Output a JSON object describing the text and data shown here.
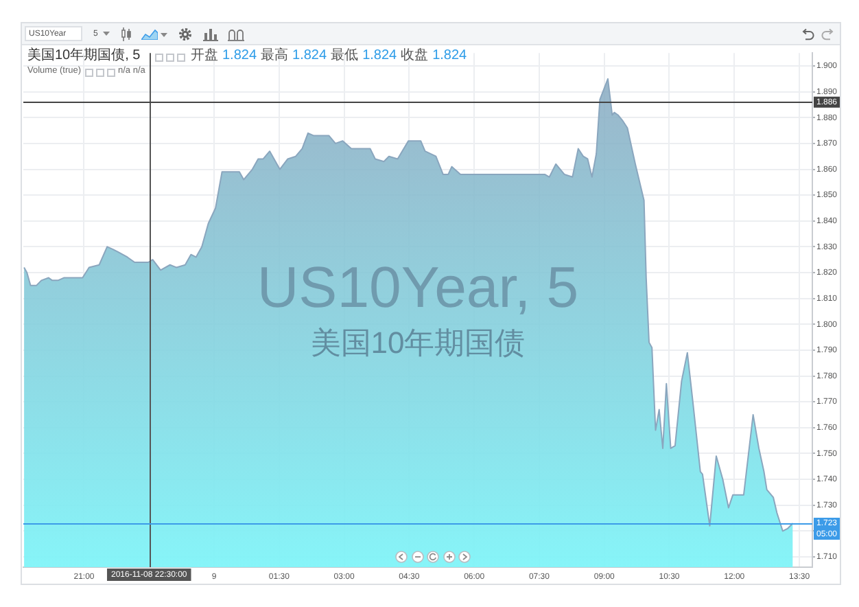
{
  "chart_data": {
    "type": "area",
    "title": "美国10年期国债, 5",
    "subtitle": "开盘 1.824 最高 1.824 最低 1.824 收盘 1.824",
    "annotations": [
      "US10Year",
      "5",
      "Volume (true)",
      "n/a n/a",
      "US10Year, 5",
      "美国10年期国债",
      {
        "text": "05:00",
        "y": 1.723
      }
    ],
    "color": "#8aa6be",
    "x": [
      "2016-11-08T19:37",
      "2016-11-08T19:41",
      "2016-11-08T19:46",
      "2016-11-08T19:54",
      "2016-11-08T20:01",
      "2016-11-08T20:11",
      "2016-11-08T20:16",
      "2016-11-08T20:24",
      "2016-11-08T20:32",
      "2016-11-08T20:58",
      "2016-11-08T21:07",
      "2016-11-08T21:21",
      "2016-11-08T21:32",
      "2016-11-08T21:40",
      "2016-11-08T21:47",
      "2016-11-08T22:00",
      "2016-11-08T22:10",
      "2016-11-08T22:29",
      "2016-11-08T22:35",
      "2016-11-08T22:46",
      "2016-11-08T22:59",
      "2016-11-08T23:08",
      "2016-11-08T23:20",
      "2016-11-08T23:28",
      "2016-11-08T23:35",
      "2016-11-08T23:43",
      "2016-11-08T23:52",
      "2016-11-09T00:02",
      "2016-11-09T00:11",
      "2016-11-09T00:23",
      "2016-11-09T00:35",
      "2016-11-09T00:41",
      "2016-11-09T00:53",
      "2016-11-09T01:01",
      "2016-11-09T01:08",
      "2016-11-09T01:17",
      "2016-11-09T01:23",
      "2016-11-09T01:31",
      "2016-11-09T01:42",
      "2016-11-09T01:53",
      "2016-11-09T02:02",
      "2016-11-09T02:10",
      "2016-11-09T02:18",
      "2016-11-09T02:25",
      "2016-11-09T02:39",
      "2016-11-09T02:48",
      "2016-11-09T02:58",
      "2016-11-09T03:10",
      "2016-11-09T03:25",
      "2016-11-09T03:36",
      "2016-11-09T03:43",
      "2016-11-09T03:55",
      "2016-11-09T04:02",
      "2016-11-09T04:14",
      "2016-11-09T04:29",
      "2016-11-09T04:46",
      "2016-11-09T04:52",
      "2016-11-09T05:07",
      "2016-11-09T05:17",
      "2016-11-09T05:24",
      "2016-11-09T05:29",
      "2016-11-09T05:41",
      "2016-11-09T06:04",
      "2016-11-09T06:10",
      "2016-11-09T07:38",
      "2016-11-09T07:44",
      "2016-11-09T07:53",
      "2016-11-09T08:05",
      "2016-11-09T08:16",
      "2016-11-09T08:24",
      "2016-11-09T08:31",
      "2016-11-09T08:37",
      "2016-11-09T08:43",
      "2016-11-09T08:49",
      "2016-11-09T08:54",
      "2016-11-09T09:05",
      "2016-11-09T09:11",
      "2016-11-09T09:14",
      "2016-11-09T09:19",
      "2016-11-09T09:25",
      "2016-11-09T09:32",
      "2016-11-09T09:43",
      "2016-11-09T09:55",
      "2016-11-09T09:58",
      "2016-11-09T10:02",
      "2016-11-09T10:06",
      "2016-11-09T10:11",
      "2016-11-09T10:16",
      "2016-11-09T10:21",
      "2016-11-09T10:26",
      "2016-11-09T10:32",
      "2016-11-09T10:38",
      "2016-11-09T10:47",
      "2016-11-09T10:55",
      "2016-11-09T11:03",
      "2016-11-09T11:13",
      "2016-11-09T11:16",
      "2016-11-09T11:26",
      "2016-11-09T11:35",
      "2016-11-09T11:44",
      "2016-11-09T11:52",
      "2016-11-09T11:58",
      "2016-11-09T12:13",
      "2016-11-09T12:26",
      "2016-11-09T12:34",
      "2016-11-09T12:41",
      "2016-11-09T12:45",
      "2016-11-09T12:54",
      "2016-11-09T12:59",
      "2016-11-09T13:07",
      "2016-11-09T13:14",
      "2016-11-09T13:21"
    ],
    "values": [
      1.822,
      1.82,
      1.815,
      1.815,
      1.817,
      1.818,
      1.817,
      1.817,
      1.818,
      1.818,
      1.822,
      1.823,
      1.83,
      1.829,
      1.828,
      1.826,
      1.824,
      1.824,
      1.825,
      1.821,
      1.823,
      1.822,
      1.823,
      1.827,
      1.826,
      1.83,
      1.839,
      1.845,
      1.859,
      1.859,
      1.859,
      1.856,
      1.86,
      1.864,
      1.864,
      1.867,
      1.864,
      1.86,
      1.864,
      1.865,
      1.868,
      1.874,
      1.873,
      1.873,
      1.873,
      1.87,
      1.871,
      1.868,
      1.868,
      1.868,
      1.864,
      1.863,
      1.865,
      1.864,
      1.871,
      1.871,
      1.867,
      1.865,
      1.858,
      1.858,
      1.861,
      1.858,
      1.858,
      1.858,
      1.858,
      1.857,
      1.862,
      1.858,
      1.857,
      1.868,
      1.865,
      1.864,
      1.857,
      1.866,
      1.887,
      1.895,
      1.881,
      1.882,
      1.881,
      1.879,
      1.876,
      1.862,
      1.848,
      1.818,
      1.793,
      1.791,
      1.759,
      1.767,
      1.752,
      1.777,
      1.752,
      1.753,
      1.778,
      1.789,
      1.769,
      1.743,
      1.742,
      1.722,
      1.749,
      1.74,
      1.729,
      1.734,
      1.734,
      1.765,
      1.752,
      1.743,
      1.736,
      1.733,
      1.727,
      1.72,
      1.721,
      1.723
    ],
    "xlim": [
      "2016-11-08T19:36",
      "2016-11-09T13:48"
    ],
    "xticks": [
      {
        "value": "2016-11-08T21:00",
        "label": "21:00"
      },
      {
        "value": "2016-11-09",
        "label": "9"
      },
      {
        "value": "2016-11-09T01:30",
        "label": "01:30"
      },
      {
        "value": "2016-11-09T03:00",
        "label": "03:00"
      },
      {
        "value": "2016-11-09T04:30",
        "label": "04:30"
      },
      {
        "value": "2016-11-09T06:00",
        "label": "06:00"
      },
      {
        "value": "2016-11-09T07:30",
        "label": "07:30"
      },
      {
        "value": "2016-11-09T09:00",
        "label": "09:00"
      },
      {
        "value": "2016-11-09T10:30",
        "label": "10:30"
      },
      {
        "value": "2016-11-09T12:00",
        "label": "12:00"
      },
      {
        "value": "2016-11-09T13:30",
        "label": "13:30"
      }
    ],
    "ylim": [
      1.706,
      1.905
    ],
    "yticks": [
      {
        "value": 1.71,
        "label": "1.710"
      },
      {
        "value": 1.72,
        "label": null
      },
      {
        "value": 1.73,
        "label": "1.730"
      },
      {
        "value": 1.74,
        "label": "1.740"
      },
      {
        "value": 1.75,
        "label": "1.750"
      },
      {
        "value": 1.76,
        "label": "1.760"
      },
      {
        "value": 1.77,
        "label": "1.770"
      },
      {
        "value": 1.78,
        "label": "1.780"
      },
      {
        "value": 1.79,
        "label": "1.790"
      },
      {
        "value": 1.8,
        "label": "1.800"
      },
      {
        "value": 1.81,
        "label": "1.810"
      },
      {
        "value": 1.82,
        "label": "1.820"
      },
      {
        "value": 1.83,
        "label": "1.830"
      },
      {
        "value": 1.84,
        "label": "1.840"
      },
      {
        "value": 1.85,
        "label": "1.850"
      },
      {
        "value": 1.86,
        "label": "1.860"
      },
      {
        "value": 1.87,
        "label": "1.870"
      },
      {
        "value": 1.88,
        "label": "1.880"
      },
      {
        "value": 1.89,
        "label": "1.890"
      },
      {
        "value": 1.9,
        "label": "1.900"
      }
    ],
    "grid": true,
    "ref_lines": [
      {
        "axis": "x",
        "value": "2016-11-08T22:30",
        "label": "2016-11-08 22:30:00",
        "color": "#555555"
      },
      {
        "axis": "y",
        "value": 1.886,
        "label": "1.886",
        "color": "#444444"
      },
      {
        "axis": "y",
        "value": 1.723,
        "label": "1.723",
        "color": "#3c9be8"
      }
    ]
  }
}
